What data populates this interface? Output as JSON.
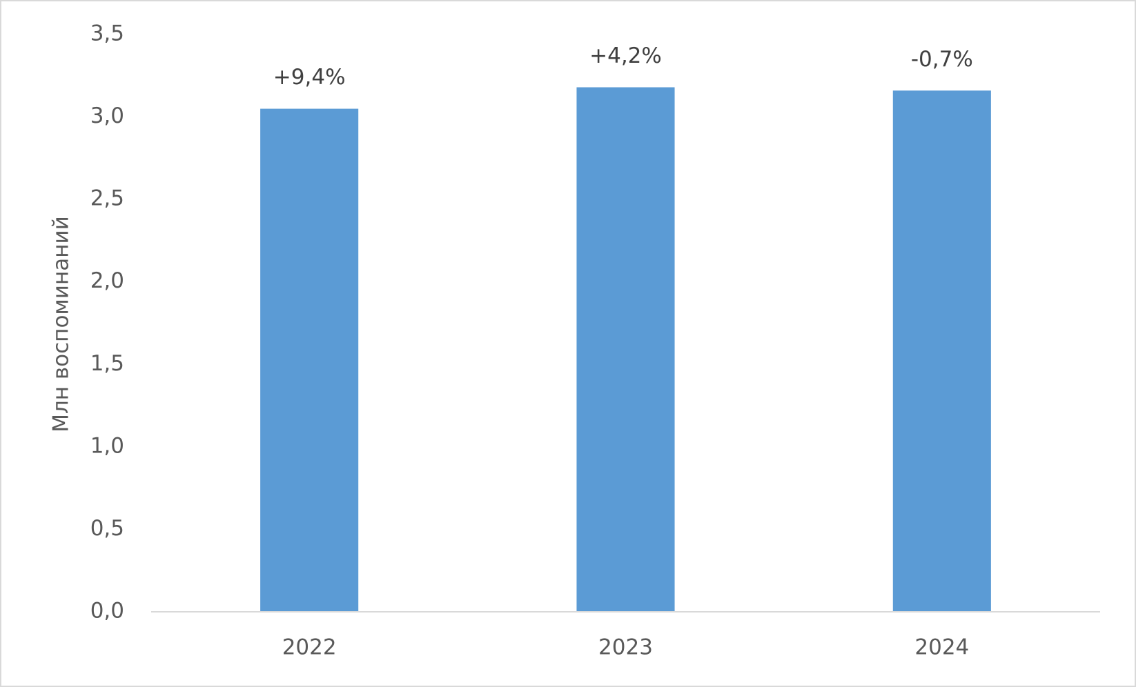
{
  "chart_data": {
    "type": "bar",
    "y_axis_label": "Млн воспоминаний",
    "categories": [
      "2022",
      "2023",
      "2024"
    ],
    "values": [
      3.05,
      3.18,
      3.16
    ],
    "annotations": [
      "+9,4%",
      "+4,2%",
      "-0,7%"
    ],
    "color": "#5b9bd5",
    "ylim": [
      0,
      3.5
    ],
    "yticks": [
      {
        "value": 0,
        "label": "0,0"
      },
      {
        "value": 0.5,
        "label": "0,5"
      },
      {
        "value": 1,
        "label": "1,0"
      },
      {
        "value": 1.5,
        "label": "1,5"
      },
      {
        "value": 2,
        "label": "2,0"
      },
      {
        "value": 2.5,
        "label": "2,5"
      },
      {
        "value": 3,
        "label": "3,0"
      },
      {
        "value": 3.5,
        "label": "3,5"
      }
    ],
    "grid": false
  }
}
